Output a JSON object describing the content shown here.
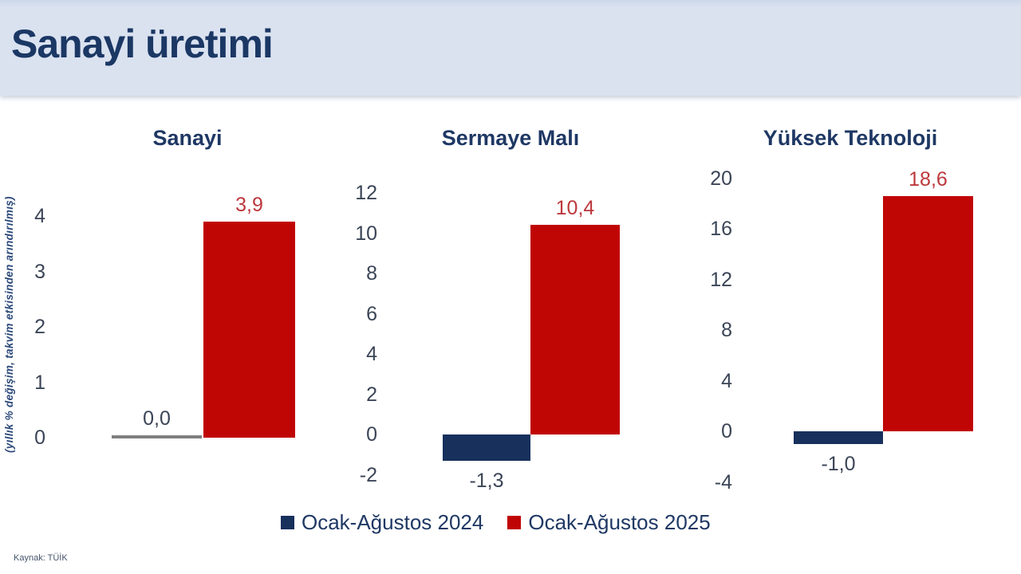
{
  "header": {
    "title": "Sanayi üretimi"
  },
  "axis_note": "(yıllık % değişim, takvim etkisinden arındırılmış)",
  "source": "Kaynak: TÜİK",
  "colors": {
    "header_bg": "#dae2f0",
    "title_navy": "#1f3864",
    "series_2024": "#17305c",
    "series_2025": "#c00505",
    "zero_bar_line": "#808080",
    "label_neutral": "#3b4557",
    "label_2025": "#bc383c",
    "tick_text": "#3b4557"
  },
  "legend": [
    {
      "label": "Ocak-Ağustos 2024",
      "color": "#17305c"
    },
    {
      "label": "Ocak-Ağustos 2025",
      "color": "#c00505"
    }
  ],
  "chart_data": {
    "type": "bar",
    "title": "Sanayi üretimi",
    "ylabel": "(yıllık % değişim, takvim etkisinden arındırılmış)",
    "grid": false,
    "legend_position": "bottom",
    "series_names": [
      "Ocak-Ağustos 2024",
      "Ocak-Ağustos 2025"
    ],
    "charts": [
      {
        "title": "Sanayi",
        "values": [
          0.0,
          3.9
        ],
        "value_labels": [
          "0,0",
          "3,9"
        ],
        "axis": {
          "min": 0,
          "max": 4,
          "step": 1
        }
      },
      {
        "title": "Sermaye Malı",
        "values": [
          -1.3,
          10.4
        ],
        "value_labels": [
          "-1,3",
          "10,4"
        ],
        "axis": {
          "min": -2,
          "max": 12,
          "step": 2
        }
      },
      {
        "title": "Yüksek Teknoloji",
        "values": [
          -1.0,
          18.6
        ],
        "value_labels": [
          "-1,0",
          "18,6"
        ],
        "axis": {
          "min": -4,
          "max": 20,
          "step": 4
        }
      }
    ]
  }
}
